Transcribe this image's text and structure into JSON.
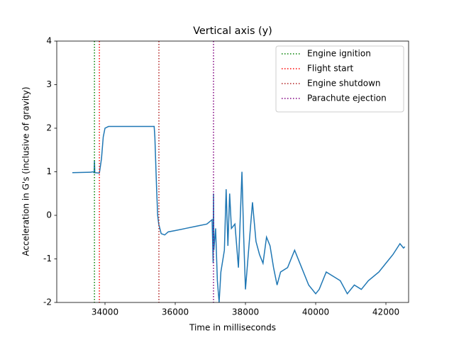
{
  "chart_data": {
    "type": "line",
    "title": "Vertical axis (y)",
    "xlabel": "Time in milliseconds",
    "ylabel": "Acceleration in G's (inclusive of gravity)",
    "x": [
      33070,
      33600,
      33650,
      33690,
      33700,
      33710,
      33840,
      33900,
      33950,
      34000,
      34100,
      35400,
      35420,
      35470,
      35500,
      35530,
      35600,
      35700,
      35800,
      36000,
      36300,
      36600,
      36900,
      37050,
      37080,
      37090,
      37100,
      37150,
      37200,
      37250,
      37300,
      37400,
      37450,
      37500,
      37550,
      37600,
      37700,
      37800,
      37900,
      37950,
      38000,
      38100,
      38200,
      38300,
      38400,
      38500,
      38600,
      38700,
      38800,
      38900,
      39000,
      39200,
      39400,
      39600,
      39800,
      40000,
      40100,
      40300,
      40500,
      40700,
      40900,
      41100,
      41300,
      41500,
      41800,
      42000,
      42200,
      42400,
      42500,
      42540
    ],
    "series": [
      {
        "color": "#1f77b4",
        "values": [
          0.98,
          0.99,
          1.0,
          0.98,
          1.25,
          0.98,
          0.97,
          1.3,
          1.8,
          2.0,
          2.04,
          2.04,
          1.8,
          0.6,
          0.0,
          -0.2,
          -0.42,
          -0.45,
          -0.38,
          -0.35,
          -0.3,
          -0.25,
          -0.2,
          -0.1,
          -1.1,
          0.5,
          -0.8,
          -0.3,
          -1.5,
          -2.0,
          -1.3,
          -0.8,
          0.6,
          -0.7,
          0.5,
          -0.3,
          -0.2,
          -1.2,
          1.0,
          -0.5,
          -1.7,
          -0.7,
          0.3,
          -0.6,
          -0.9,
          -1.1,
          -0.5,
          -0.7,
          -1.2,
          -1.6,
          -1.3,
          -1.2,
          -0.8,
          -1.2,
          -1.6,
          -1.8,
          -1.7,
          -1.3,
          -1.4,
          -1.5,
          -1.8,
          -1.6,
          -1.7,
          -1.5,
          -1.3,
          -1.1,
          -0.9,
          -0.65,
          -0.75,
          -0.72
        ]
      }
    ],
    "vlines": [
      {
        "name": "Engine ignition",
        "x": 33700,
        "color": "#008000"
      },
      {
        "name": "Flight start",
        "x": 33840,
        "color": "#ff0000"
      },
      {
        "name": "Engine shutdown",
        "x": 35535,
        "color": "#b22222"
      },
      {
        "name": "Parachute ejection",
        "x": 37090,
        "color": "#800080"
      }
    ],
    "xlim": [
      32626,
      42646
    ],
    "ylim": [
      -2,
      4
    ],
    "xticks": [
      34000,
      36000,
      38000,
      40000,
      42000
    ],
    "yticks": [
      -2,
      -1,
      0,
      1,
      2,
      3,
      4
    ],
    "legend": "upper right"
  }
}
